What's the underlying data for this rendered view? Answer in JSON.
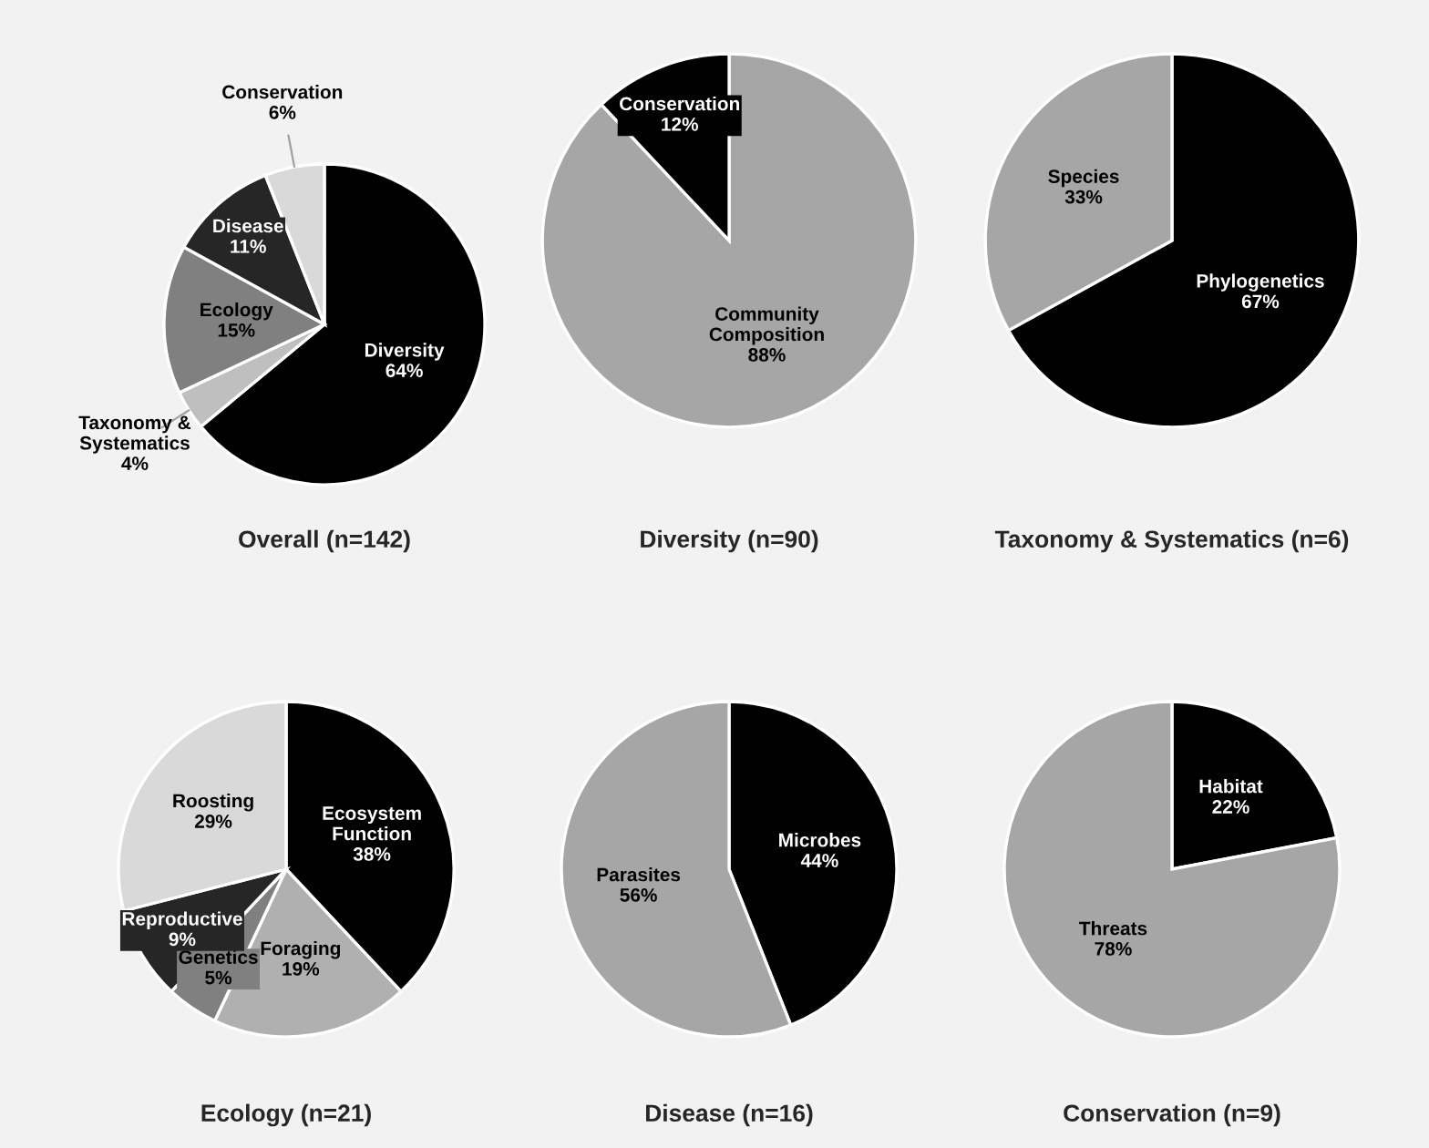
{
  "chart_data": [
    {
      "type": "pie",
      "title": "Overall (n=142)",
      "categories": [
        "Diversity",
        "Taxonomy & Systematics",
        "Ecology",
        "Disease",
        "Conservation"
      ],
      "values": [
        64,
        4,
        15,
        11,
        6
      ],
      "value_labels": [
        "64%",
        "4%",
        "15%",
        "11%",
        "6%"
      ],
      "colors": [
        "#000000",
        "#bfbfbf",
        "#808080",
        "#262626",
        "#d9d9d9"
      ]
    },
    {
      "type": "pie",
      "title": "Diversity (n=90)",
      "categories": [
        "Community Composition",
        "Conservation"
      ],
      "values": [
        88,
        12
      ],
      "value_labels": [
        "88%",
        "12%"
      ],
      "colors": [
        "#a6a6a6",
        "#000000"
      ]
    },
    {
      "type": "pie",
      "title": "Taxonomy & Systematics (n=6)",
      "categories": [
        "Phylogenetics",
        "Species"
      ],
      "values": [
        67,
        33
      ],
      "value_labels": [
        "67%",
        "33%"
      ],
      "colors": [
        "#000000",
        "#a6a6a6"
      ]
    },
    {
      "type": "pie",
      "title": "Ecology (n=21)",
      "categories": [
        "Ecosystem Function",
        "Foraging",
        "Genetics",
        "Reproductive",
        "Roosting"
      ],
      "values": [
        38,
        19,
        5,
        9,
        29
      ],
      "value_labels": [
        "38%",
        "19%",
        "5%",
        "9%",
        "29%"
      ],
      "colors": [
        "#000000",
        "#b0b0b0",
        "#808080",
        "#262626",
        "#d9d9d9"
      ]
    },
    {
      "type": "pie",
      "title": "Disease (n=16)",
      "categories": [
        "Microbes",
        "Parasites"
      ],
      "values": [
        44,
        56
      ],
      "value_labels": [
        "44%",
        "56%"
      ],
      "colors": [
        "#000000",
        "#a6a6a6"
      ]
    },
    {
      "type": "pie",
      "title": "Conservation (n=9)",
      "categories": [
        "Habitat",
        "Threats"
      ],
      "values": [
        22,
        78
      ],
      "value_labels": [
        "22%",
        "78%"
      ],
      "colors": [
        "#000000",
        "#a6a6a6"
      ]
    }
  ]
}
